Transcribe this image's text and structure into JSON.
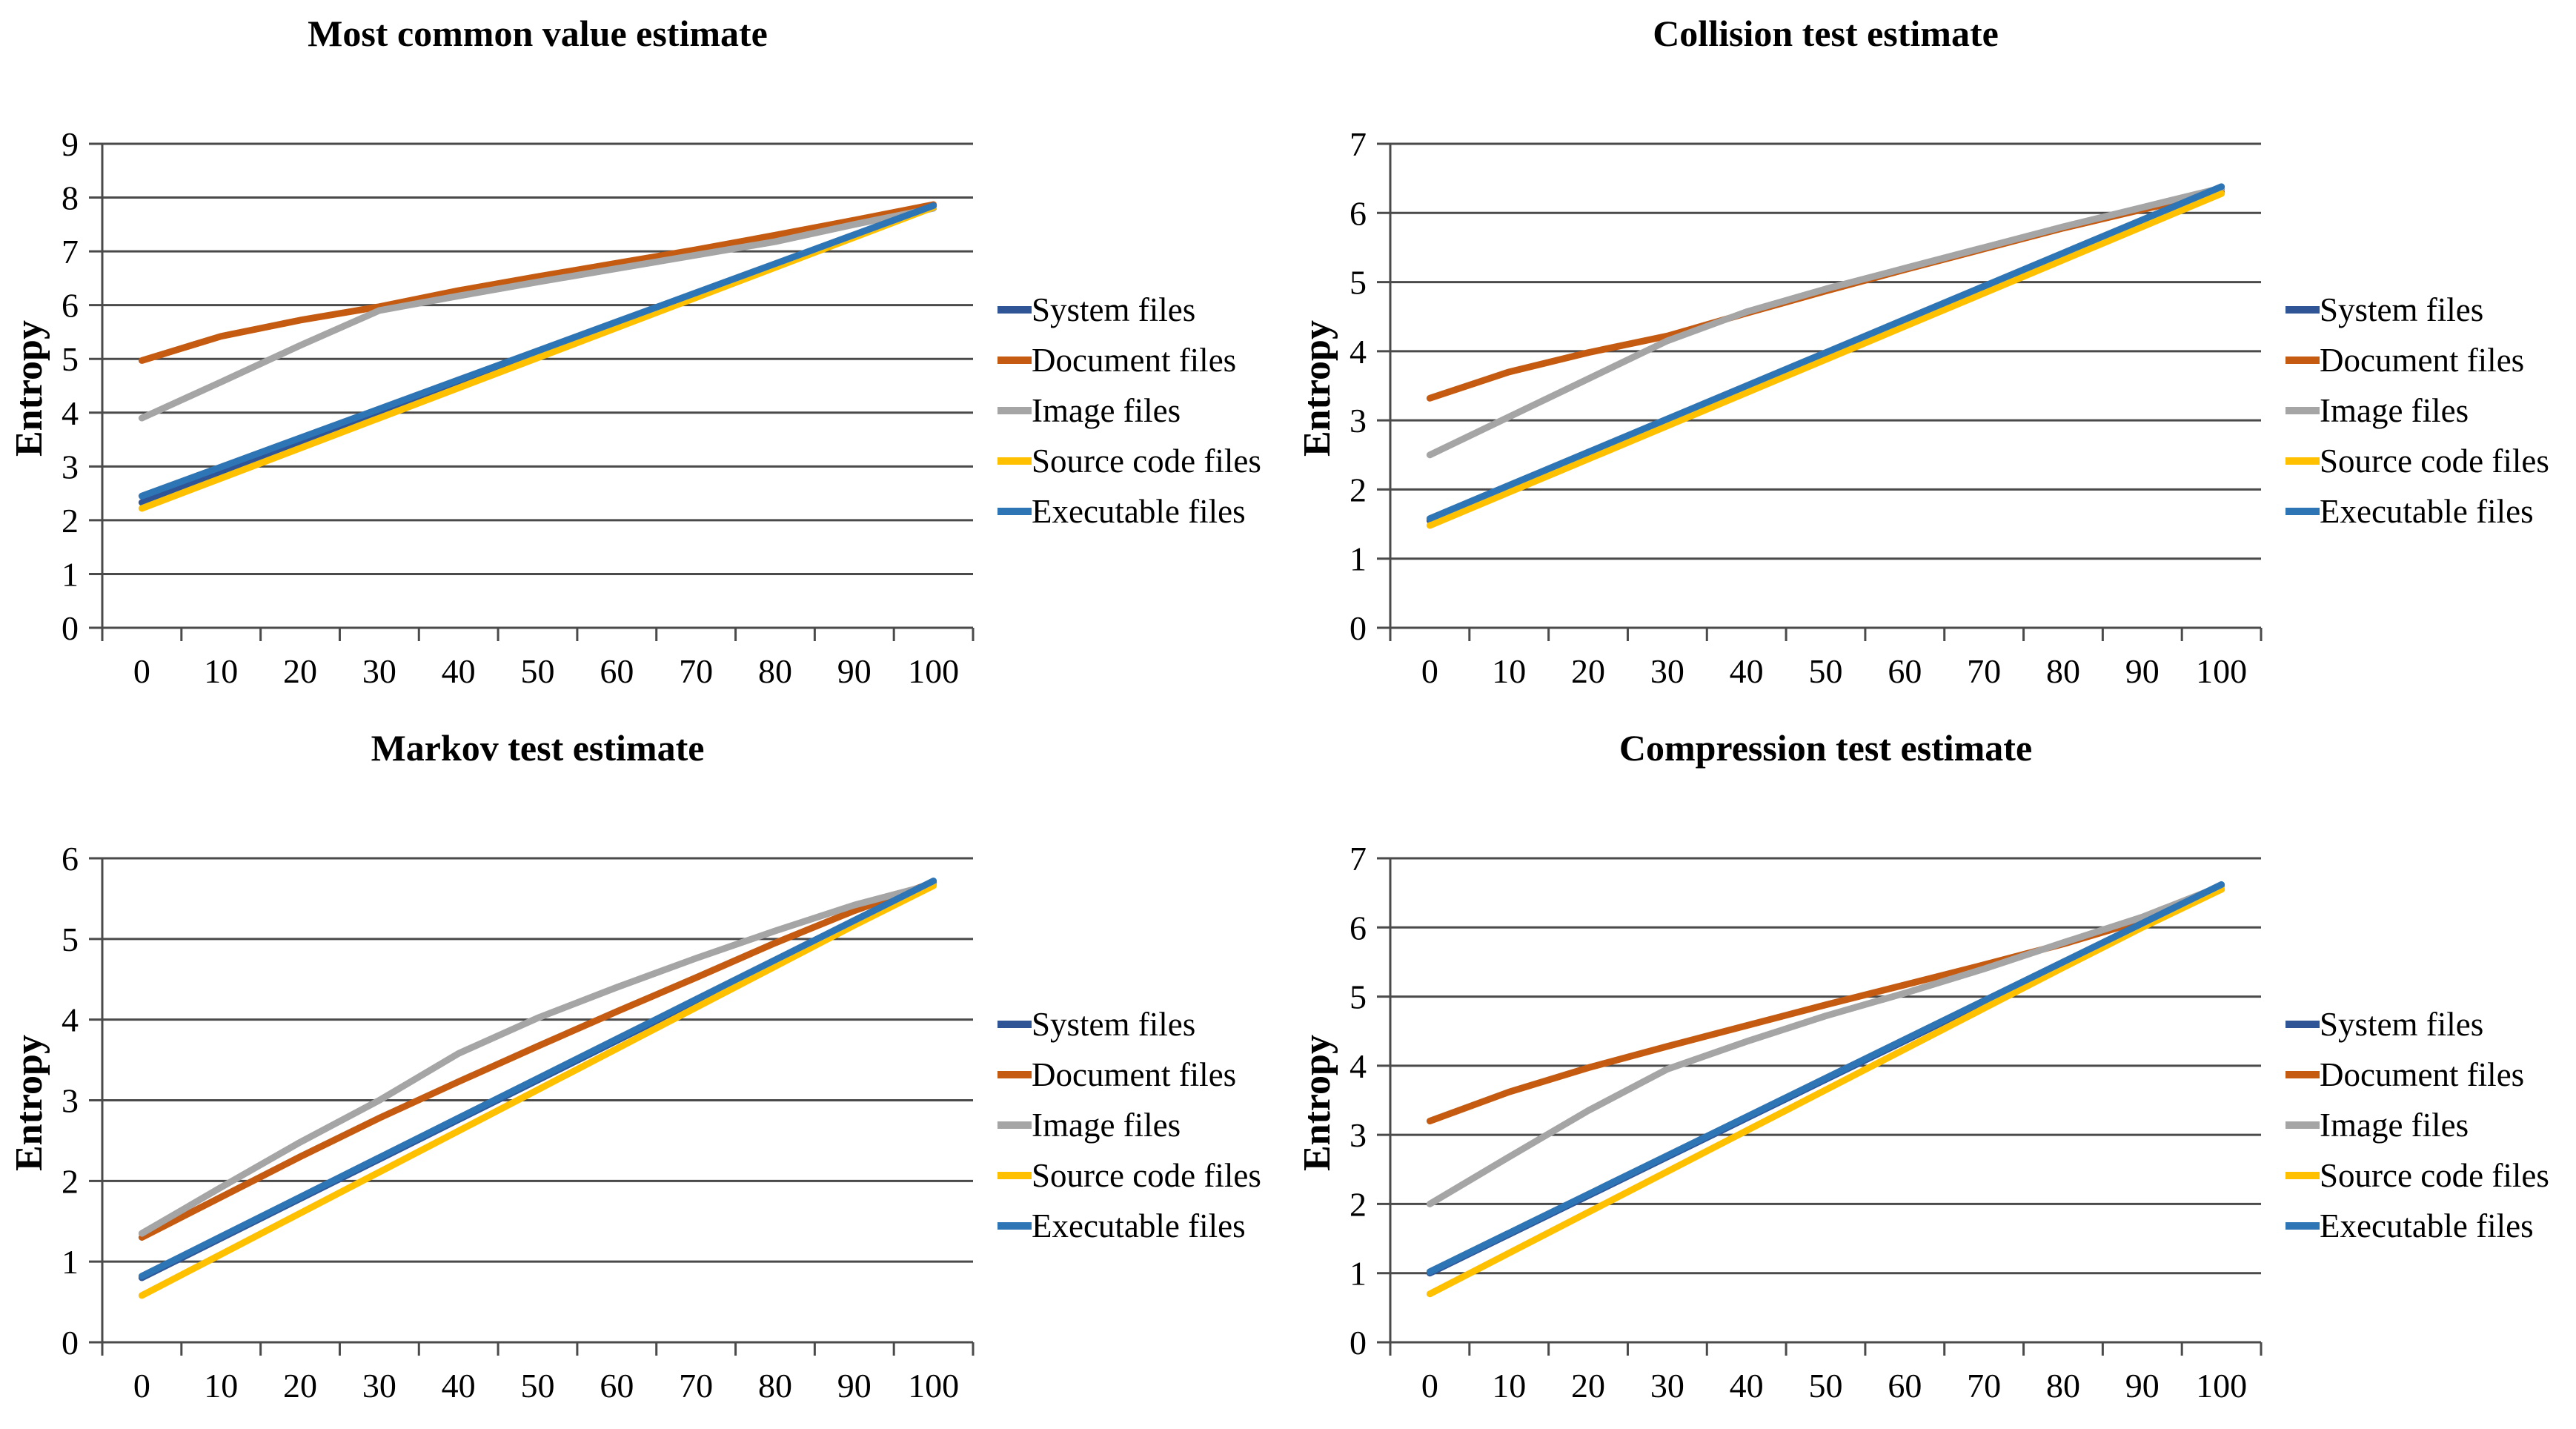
{
  "figure": {
    "background": "#FFFFFF",
    "axis_color": "#4A4A4A",
    "text_color": "#000000"
  },
  "chart_data": [
    {
      "type": "line",
      "title": "Most common value estimate",
      "xlabel": "",
      "ylabel": "Entropy",
      "x": [
        0,
        10,
        20,
        30,
        40,
        50,
        60,
        70,
        80,
        90,
        100
      ],
      "ylim": [
        0,
        9
      ],
      "ytick_step": 1,
      "grid": true,
      "legend_position": "right",
      "series": [
        {
          "name": "System files",
          "color": "#2F5597",
          "values": [
            2.33,
            2.88,
            3.43,
            3.98,
            4.53,
            5.08,
            5.63,
            6.18,
            6.73,
            7.28,
            7.85
          ]
        },
        {
          "name": "Document files",
          "color": "#C55A11",
          "values": [
            4.97,
            5.42,
            5.72,
            5.97,
            6.27,
            6.53,
            6.78,
            7.03,
            7.3,
            7.58,
            7.87
          ]
        },
        {
          "name": "Image files",
          "color": "#A5A5A5",
          "values": [
            3.9,
            4.57,
            5.25,
            5.9,
            6.17,
            6.43,
            6.68,
            6.93,
            7.18,
            7.5,
            7.8
          ]
        },
        {
          "name": "Source code files",
          "color": "#FFC000",
          "values": [
            2.22,
            2.78,
            3.34,
            3.9,
            4.46,
            5.02,
            5.58,
            6.14,
            6.7,
            7.26,
            7.82
          ]
        },
        {
          "name": "Executable files",
          "color": "#2E75B6",
          "values": [
            2.45,
            2.99,
            3.53,
            4.07,
            4.61,
            5.15,
            5.69,
            6.23,
            6.77,
            7.31,
            7.85
          ]
        }
      ]
    },
    {
      "type": "line",
      "title": "Collision test estimate",
      "xlabel": "",
      "ylabel": "Entropy",
      "x": [
        0,
        10,
        20,
        30,
        40,
        50,
        60,
        70,
        80,
        90,
        100
      ],
      "ylim": [
        0,
        7
      ],
      "ytick_step": 1,
      "grid": true,
      "legend_position": "right",
      "series": [
        {
          "name": "System files",
          "color": "#2F5597",
          "values": [
            1.55,
            2.03,
            2.51,
            2.99,
            3.47,
            3.95,
            4.43,
            4.91,
            5.39,
            5.87,
            6.35
          ]
        },
        {
          "name": "Document files",
          "color": "#C55A11",
          "values": [
            3.32,
            3.7,
            3.98,
            4.22,
            4.55,
            4.87,
            5.18,
            5.48,
            5.78,
            6.05,
            6.3
          ]
        },
        {
          "name": "Image files",
          "color": "#A5A5A5",
          "values": [
            2.5,
            3.05,
            3.6,
            4.15,
            4.57,
            4.9,
            5.2,
            5.5,
            5.8,
            6.08,
            6.36
          ]
        },
        {
          "name": "Source code files",
          "color": "#FFC000",
          "values": [
            1.48,
            1.96,
            2.44,
            2.92,
            3.4,
            3.88,
            4.36,
            4.84,
            5.32,
            5.8,
            6.28
          ]
        },
        {
          "name": "Executable files",
          "color": "#2E75B6",
          "values": [
            1.58,
            2.06,
            2.54,
            3.02,
            3.5,
            3.98,
            4.46,
            4.94,
            5.42,
            5.9,
            6.38
          ]
        }
      ]
    },
    {
      "type": "line",
      "title": "Markov test estimate",
      "xlabel": "",
      "ylabel": "Entropy",
      "x": [
        0,
        10,
        20,
        30,
        40,
        50,
        60,
        70,
        80,
        90,
        100
      ],
      "ylim": [
        0,
        6
      ],
      "ytick_step": 1,
      "grid": true,
      "legend_position": "right",
      "series": [
        {
          "name": "System files",
          "color": "#2F5597",
          "values": [
            0.8,
            1.29,
            1.78,
            2.27,
            2.76,
            3.25,
            3.74,
            4.23,
            4.72,
            5.21,
            5.7
          ]
        },
        {
          "name": "Document files",
          "color": "#C55A11",
          "values": [
            1.3,
            1.8,
            2.3,
            2.78,
            3.23,
            3.67,
            4.1,
            4.52,
            4.95,
            5.35,
            5.7
          ]
        },
        {
          "name": "Image files",
          "color": "#A5A5A5",
          "values": [
            1.35,
            1.92,
            2.48,
            3.0,
            3.58,
            4.02,
            4.4,
            4.76,
            5.1,
            5.42,
            5.68
          ]
        },
        {
          "name": "Source code files",
          "color": "#FFC000",
          "values": [
            0.58,
            1.09,
            1.6,
            2.11,
            2.62,
            3.13,
            3.64,
            4.15,
            4.66,
            5.17,
            5.66
          ]
        },
        {
          "name": "Executable files",
          "color": "#2E75B6",
          "values": [
            0.82,
            1.31,
            1.8,
            2.29,
            2.78,
            3.27,
            3.76,
            4.25,
            4.74,
            5.23,
            5.72
          ]
        }
      ]
    },
    {
      "type": "line",
      "title": "Compression test estimate",
      "xlabel": "",
      "ylabel": "Entropy",
      "x": [
        0,
        10,
        20,
        30,
        40,
        50,
        60,
        70,
        80,
        90,
        100
      ],
      "ylim": [
        0,
        7
      ],
      "ytick_step": 1,
      "grid": true,
      "legend_position": "right",
      "series": [
        {
          "name": "System files",
          "color": "#2F5597",
          "values": [
            1.0,
            1.56,
            2.12,
            2.68,
            3.24,
            3.8,
            4.36,
            4.92,
            5.48,
            6.04,
            6.6
          ]
        },
        {
          "name": "Document files",
          "color": "#C55A11",
          "values": [
            3.2,
            3.62,
            3.97,
            4.28,
            4.58,
            4.88,
            5.17,
            5.46,
            5.76,
            6.1,
            6.55
          ]
        },
        {
          "name": "Image files",
          "color": "#A5A5A5",
          "values": [
            2.0,
            2.68,
            3.35,
            3.95,
            4.35,
            4.72,
            5.05,
            5.4,
            5.78,
            6.15,
            6.6
          ]
        },
        {
          "name": "Source code files",
          "color": "#FFC000",
          "values": [
            0.7,
            1.29,
            1.88,
            2.47,
            3.06,
            3.65,
            4.24,
            4.83,
            5.42,
            6.0,
            6.55
          ]
        },
        {
          "name": "Executable files",
          "color": "#2E75B6",
          "values": [
            1.02,
            1.58,
            2.14,
            2.7,
            3.26,
            3.82,
            4.38,
            4.94,
            5.5,
            6.06,
            6.62
          ]
        }
      ]
    }
  ]
}
